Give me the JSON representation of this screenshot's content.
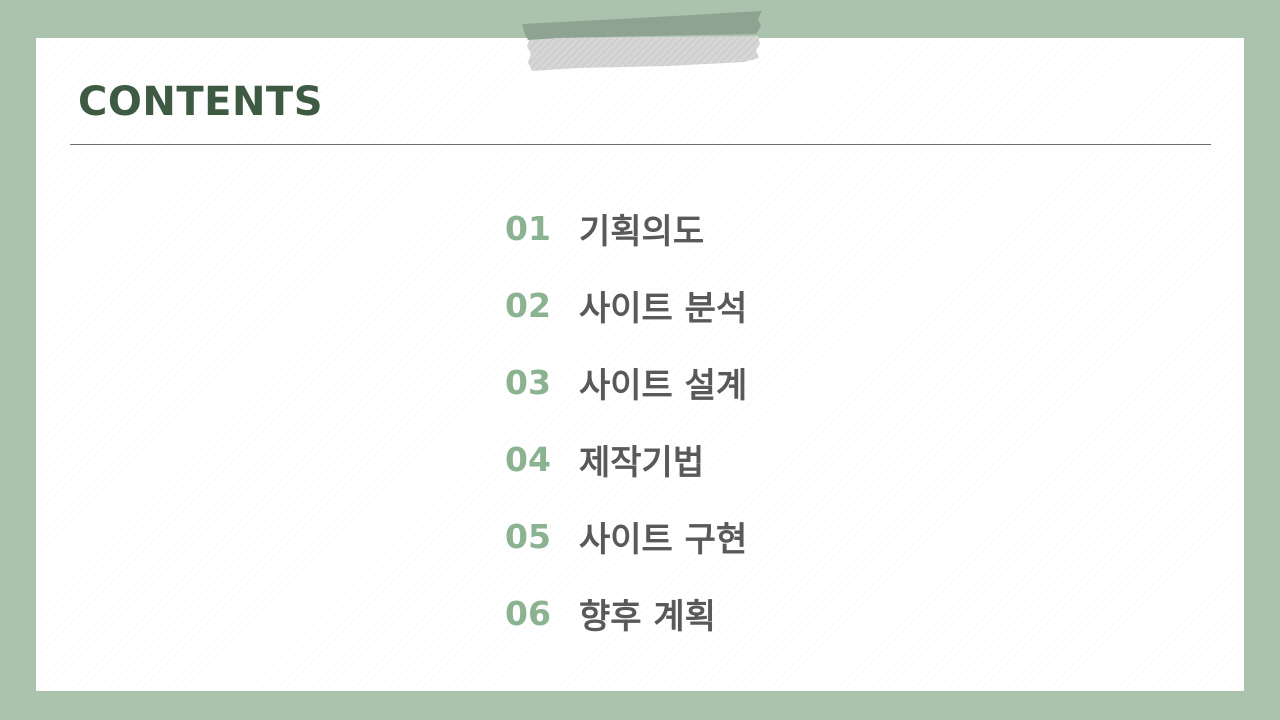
{
  "slide": {
    "title": "CONTENTS",
    "colors": {
      "frame": "#abc3ad",
      "title": "#3e5a43",
      "number": "#8bb291",
      "label": "#595959",
      "divider": "#6f6f6f",
      "tape_dark": "#8fa392",
      "tape_light": "#d4d4d4"
    },
    "decoration": "tape-strip",
    "items": [
      {
        "number": "01",
        "label": "기획의도"
      },
      {
        "number": "02",
        "label": "사이트 분석"
      },
      {
        "number": "03",
        "label": "사이트 설계"
      },
      {
        "number": "04",
        "label": "제작기법"
      },
      {
        "number": "05",
        "label": "사이트 구현"
      },
      {
        "number": "06",
        "label": "향후 계획"
      }
    ]
  }
}
